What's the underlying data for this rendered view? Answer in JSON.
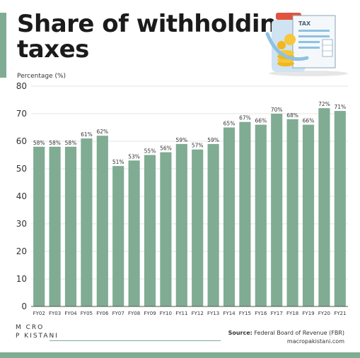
{
  "header": {
    "title_line1": "Share of withholding",
    "title_line2": "taxes",
    "illustration_label": "TAX"
  },
  "chart_data": {
    "type": "bar",
    "ylabel": "Percentage (%)",
    "ylim": [
      0,
      80
    ],
    "yticks": [
      0,
      10,
      20,
      30,
      40,
      50,
      60,
      70,
      80
    ],
    "categories": [
      "FY02",
      "FY03",
      "FY04",
      "FY05",
      "FY06",
      "FY07",
      "FY08",
      "FY09",
      "FY10",
      "FY11",
      "FY12",
      "FY13",
      "FY14",
      "FY15",
      "FY16",
      "FY17",
      "FY18",
      "FY19",
      "FY20",
      "FY21"
    ],
    "values": [
      58,
      58,
      58,
      61,
      62,
      51,
      53,
      55,
      56,
      59,
      57,
      59,
      65,
      67,
      66,
      70,
      68,
      66,
      72,
      71
    ],
    "data_labels": [
      "58%",
      "58%",
      "58%",
      "61%",
      "62%",
      "51%",
      "53%",
      "55%",
      "56%",
      "59%",
      "57%",
      "59%",
      "65%",
      "67%",
      "66%",
      "70%",
      "68%",
      "66%",
      "72%",
      "71%"
    ],
    "grid": true,
    "colors": {
      "bar": "#7fac93",
      "grid": "#dcdcdc",
      "axis": "#555555",
      "text": "#333333"
    }
  },
  "footer": {
    "logo_line1": "M CRO",
    "logo_line2": "P KISTANI",
    "source_label": "Source:",
    "source_text": "Federal Board of Revenue (FBR)",
    "website": "macropakistani.com"
  }
}
